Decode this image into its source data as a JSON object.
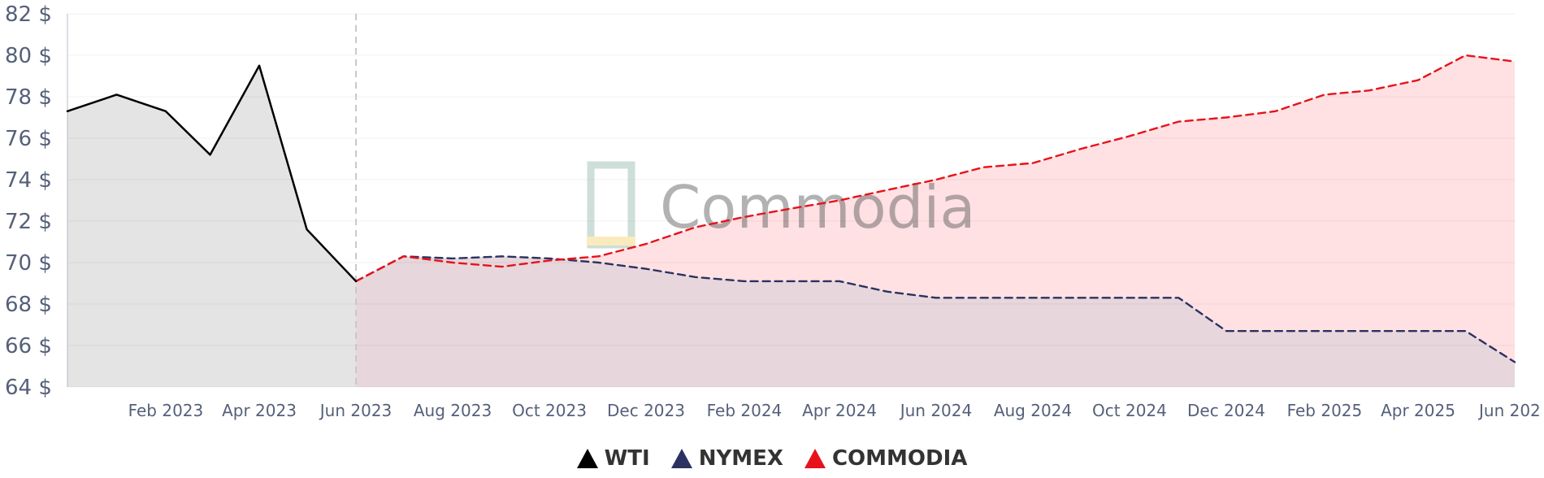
{
  "chart_data": {
    "type": "line",
    "watermark": "Commodia",
    "y_unit": "$",
    "ylim": [
      64,
      82
    ],
    "y_ticks": [
      64,
      66,
      68,
      70,
      72,
      74,
      76,
      78,
      80,
      82
    ],
    "y_tick_labels": [
      "64 $",
      "66 $",
      "68 $",
      "70 $",
      "72 $",
      "74 $",
      "76 $",
      "78 $",
      "80 $",
      "82 $"
    ],
    "xlim": [
      "2022-12-01",
      "2025-06-01"
    ],
    "x_ticks": [
      "2023-02-01",
      "2023-04-01",
      "2023-06-01",
      "2023-08-01",
      "2023-10-01",
      "2023-12-01",
      "2024-02-01",
      "2024-04-01",
      "2024-06-01",
      "2024-08-01",
      "2024-10-01",
      "2024-12-01",
      "2025-02-01",
      "2025-04-01",
      "2025-06-01"
    ],
    "x_tick_labels": [
      "Feb 2023",
      "Apr 2023",
      "Jun 2023",
      "Aug 2023",
      "Oct 2023",
      "Dec 2023",
      "Feb 2024",
      "Apr 2024",
      "Jun 2024",
      "Aug 2024",
      "Oct 2024",
      "Dec 2024",
      "Feb 2025",
      "Apr 2025",
      "Jun 202"
    ],
    "grid": true,
    "divider_date": "2023-06-01",
    "legend_position": "bottom-center",
    "series": [
      {
        "name": "WTI",
        "color": "#000000",
        "style": "solid",
        "fill": "#e4e4e4",
        "x": [
          "2022-12-01",
          "2023-01-01",
          "2023-02-01",
          "2023-03-01",
          "2023-04-01",
          "2023-05-01",
          "2023-06-01"
        ],
        "y": [
          77.3,
          78.1,
          77.3,
          75.2,
          79.5,
          71.6,
          69.1
        ]
      },
      {
        "name": "NYMEX",
        "color": "#2b3262",
        "style": "dashed",
        "fill": "#e7d7dc",
        "x": [
          "2023-06-01",
          "2023-07-01",
          "2023-08-01",
          "2023-09-01",
          "2023-10-01",
          "2023-11-01",
          "2023-12-01",
          "2024-01-01",
          "2024-02-01",
          "2024-03-01",
          "2024-04-01",
          "2024-05-01",
          "2024-06-01",
          "2024-07-01",
          "2024-08-01",
          "2024-09-01",
          "2024-10-01",
          "2024-11-01",
          "2024-12-01",
          "2025-01-01",
          "2025-02-01",
          "2025-03-01",
          "2025-04-01",
          "2025-05-01",
          "2025-06-01"
        ],
        "y": [
          69.1,
          70.3,
          70.2,
          70.3,
          70.2,
          70.0,
          69.7,
          69.3,
          69.1,
          69.1,
          69.1,
          68.6,
          68.3,
          68.3,
          68.3,
          68.3,
          68.3,
          68.3,
          66.7,
          66.7,
          66.7,
          66.7,
          66.7,
          66.7,
          65.2
        ]
      },
      {
        "name": "COMMODIA",
        "color": "#e8121b",
        "style": "dashed",
        "fill": "#ffe1e3",
        "x": [
          "2023-06-01",
          "2023-07-01",
          "2023-08-01",
          "2023-09-01",
          "2023-10-01",
          "2023-11-01",
          "2023-12-01",
          "2024-01-01",
          "2024-02-01",
          "2024-03-01",
          "2024-04-01",
          "2024-05-01",
          "2024-06-01",
          "2024-07-01",
          "2024-08-01",
          "2024-09-01",
          "2024-10-01",
          "2024-11-01",
          "2024-12-01",
          "2025-01-01",
          "2025-02-01",
          "2025-03-01",
          "2025-04-01",
          "2025-05-01",
          "2025-06-01"
        ],
        "y": [
          69.1,
          70.3,
          70.0,
          69.8,
          70.1,
          70.3,
          70.9,
          71.7,
          72.2,
          72.6,
          73.0,
          73.5,
          74.0,
          74.6,
          74.8,
          75.5,
          76.1,
          76.8,
          77.0,
          77.3,
          78.1,
          78.3,
          78.8,
          80.0,
          79.7
        ]
      }
    ]
  }
}
